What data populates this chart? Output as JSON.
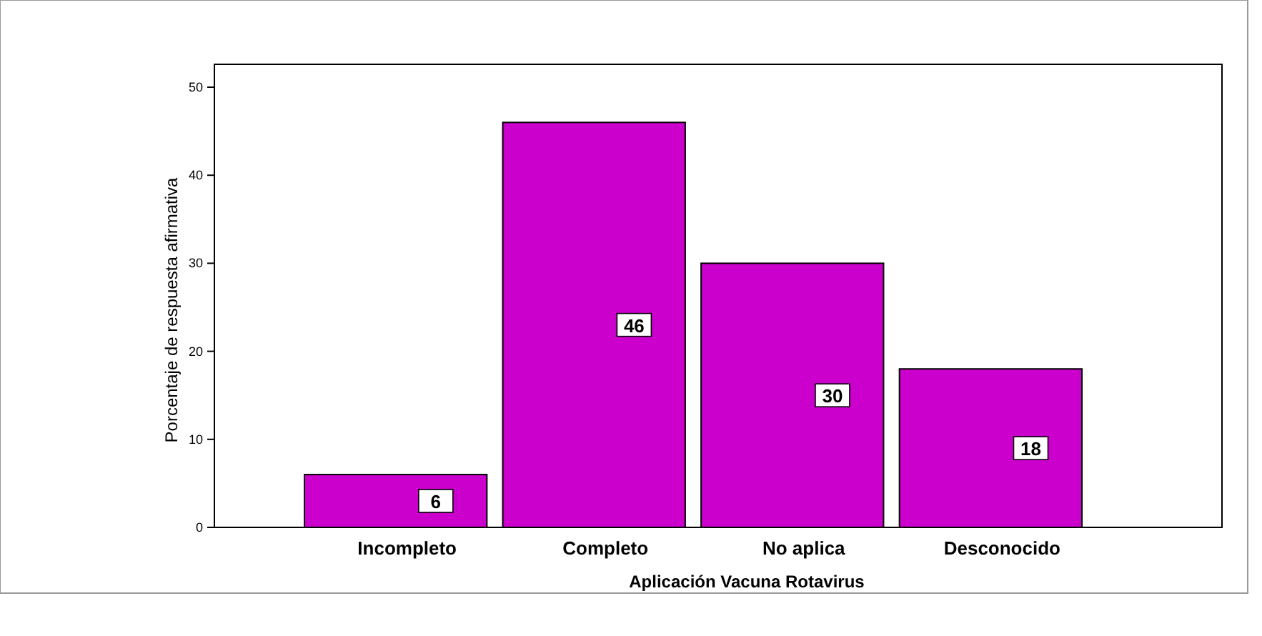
{
  "chart_data": {
    "type": "bar",
    "xlabel": "Aplicación Vacuna Rotavirus",
    "ylabel": "Porcentaje de respuesta afirmativa",
    "categories": [
      "Incompleto",
      "Completo",
      "No aplica",
      "Desconocido"
    ],
    "values": [
      6,
      46,
      30,
      18
    ],
    "color": "#cc00cc",
    "data_labels": true,
    "ylim": [
      0,
      52.6
    ],
    "yticks": [
      0,
      10,
      20,
      30,
      40,
      50
    ]
  }
}
